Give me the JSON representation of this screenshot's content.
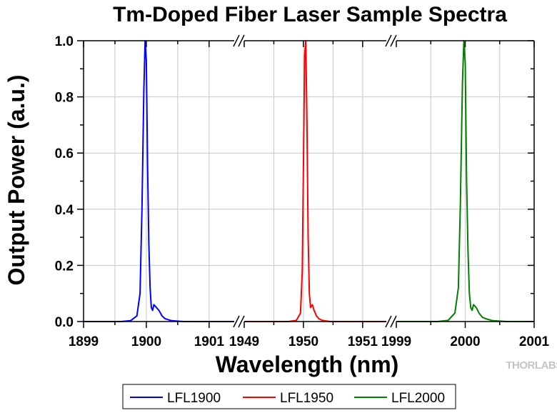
{
  "chart_data": {
    "type": "line",
    "title": "Tm-Doped Fiber Laser Sample Spectra",
    "xlabel": "Wavelength (nm)",
    "ylabel": "Output Power (a.u.)",
    "ylim": [
      0,
      1.0
    ],
    "y_ticks": [
      "0.0",
      "0.2",
      "0.4",
      "0.6",
      "0.8",
      "1.0"
    ],
    "grid": true,
    "x_segments": [
      {
        "range": [
          1899,
          1901.4
        ],
        "ticks": [
          "1899",
          "1900",
          "1901"
        ]
      },
      {
        "range": [
          1949,
          1951.4
        ],
        "ticks": [
          "1949",
          "1950",
          "1951"
        ]
      },
      {
        "range": [
          1999,
          2001
        ],
        "ticks": [
          "1999",
          "2000",
          "2001"
        ]
      }
    ],
    "legend_position": "bottom",
    "series": [
      {
        "name": "LFL1900",
        "color": "#0000ff",
        "segment": 0,
        "x": [
          1899,
          1899.6,
          1899.75,
          1899.85,
          1899.9,
          1899.93,
          1899.96,
          1899.98,
          1900.0,
          1900.02,
          1900.04,
          1900.06,
          1900.08,
          1900.1,
          1900.12,
          1900.16,
          1900.2,
          1900.25,
          1900.3,
          1900.4,
          1900.6,
          1901.4
        ],
        "y": [
          0,
          0,
          0.003,
          0.02,
          0.1,
          0.4,
          0.82,
          1.0,
          0.93,
          0.55,
          0.28,
          0.12,
          0.05,
          0.04,
          0.06,
          0.05,
          0.04,
          0.02,
          0.01,
          0.003,
          0,
          0
        ]
      },
      {
        "name": "LFL1950",
        "color": "#ff0000",
        "segment": 1,
        "x": [
          1949,
          1949.75,
          1949.88,
          1949.95,
          1949.98,
          1950.0,
          1950.02,
          1950.04,
          1950.06,
          1950.08,
          1950.1,
          1950.12,
          1950.15,
          1950.18,
          1950.22,
          1950.26,
          1950.32,
          1950.45,
          1951.4
        ],
        "y": [
          0,
          0,
          0.004,
          0.03,
          0.18,
          0.55,
          0.95,
          1.0,
          0.7,
          0.3,
          0.1,
          0.05,
          0.06,
          0.04,
          0.02,
          0.01,
          0.004,
          0,
          0
        ]
      },
      {
        "name": "LFL2000",
        "color": "#008000",
        "segment": 2,
        "x": [
          1999,
          1999.6,
          1999.75,
          1999.85,
          1999.9,
          1999.93,
          1999.96,
          1999.98,
          2000.0,
          2000.02,
          2000.04,
          2000.06,
          2000.08,
          2000.1,
          2000.12,
          2000.16,
          2000.2,
          2000.25,
          2000.3,
          2000.4,
          2000.6,
          2001
        ],
        "y": [
          0,
          0,
          0.004,
          0.03,
          0.12,
          0.42,
          0.85,
          1.0,
          0.92,
          0.5,
          0.25,
          0.1,
          0.05,
          0.04,
          0.06,
          0.05,
          0.03,
          0.015,
          0.01,
          0.003,
          0,
          0
        ]
      }
    ]
  },
  "brand": "THORLABS"
}
